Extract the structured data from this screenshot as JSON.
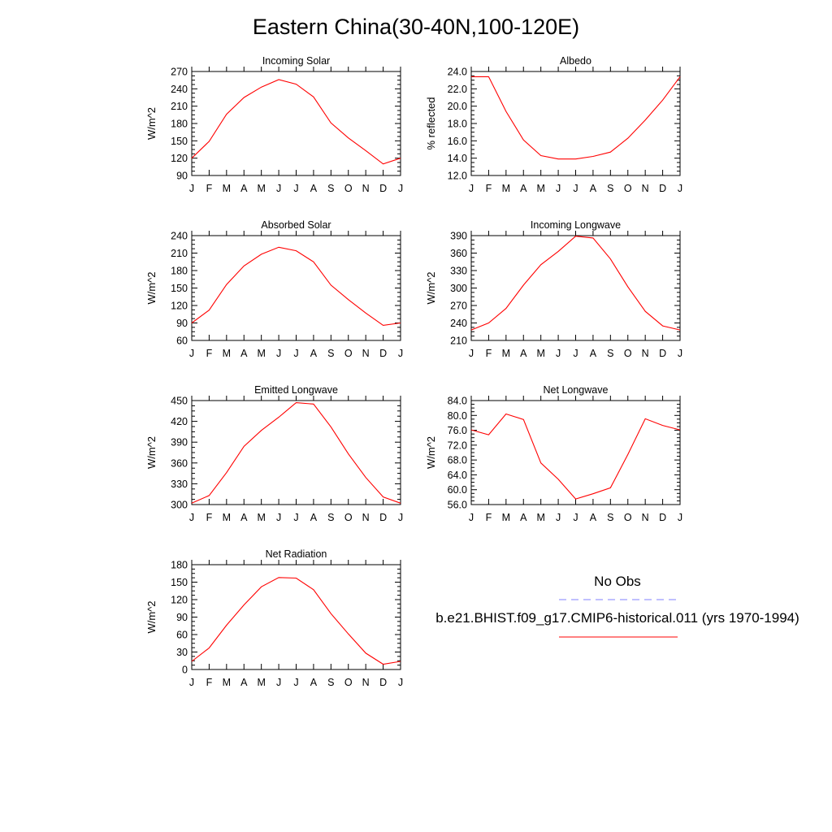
{
  "page": {
    "title": "Eastern China(30-40N,100-120E)"
  },
  "legend": {
    "items": [
      {
        "label": "No Obs",
        "color": "#8080ff",
        "dash": true
      },
      {
        "label": "b.e21.BHIST.f09_g17.CMIP6-historical.011 (yrs 1970-1994)",
        "color": "#ff0000",
        "dash": false
      }
    ]
  },
  "chart_data": [
    {
      "type": "line",
      "title": "Incoming Solar",
      "ylabel": "W/m^2",
      "xlabel": "",
      "categories": [
        "J",
        "F",
        "M",
        "A",
        "M",
        "J",
        "J",
        "A",
        "S",
        "O",
        "N",
        "D",
        "J"
      ],
      "ylim": [
        90,
        270
      ],
      "yticks": [
        "90",
        "120",
        "150",
        "180",
        "210",
        "240",
        "270"
      ],
      "series": [
        {
          "values": [
            120,
            149,
            196,
            225,
            243,
            256,
            248,
            226,
            181,
            155,
            133,
            110,
            120
          ],
          "color": "#ff0000"
        }
      ]
    },
    {
      "type": "line",
      "title": "Albedo",
      "ylabel": "% reflected",
      "xlabel": "",
      "categories": [
        "J",
        "F",
        "M",
        "A",
        "M",
        "J",
        "J",
        "A",
        "S",
        "O",
        "N",
        "D",
        "J"
      ],
      "ylim": [
        12,
        24
      ],
      "yticks": [
        "12.0",
        "14.0",
        "16.0",
        "18.0",
        "20.0",
        "22.0",
        "24.0"
      ],
      "series": [
        {
          "values": [
            23.4,
            23.4,
            19.4,
            16.1,
            14.3,
            13.9,
            13.9,
            14.2,
            14.7,
            16.3,
            18.4,
            20.7,
            23.4
          ],
          "color": "#ff0000"
        }
      ]
    },
    {
      "type": "line",
      "title": "Absorbed Solar",
      "ylabel": "W/m^2",
      "xlabel": "",
      "categories": [
        "J",
        "F",
        "M",
        "A",
        "M",
        "J",
        "J",
        "A",
        "S",
        "O",
        "N",
        "D",
        "J"
      ],
      "ylim": [
        60,
        240
      ],
      "yticks": [
        "60",
        "90",
        "120",
        "150",
        "180",
        "210",
        "240"
      ],
      "series": [
        {
          "values": [
            90,
            112,
            156,
            188,
            208,
            220,
            214,
            195,
            155,
            130,
            107,
            86,
            90
          ],
          "color": "#ff0000"
        }
      ]
    },
    {
      "type": "line",
      "title": "Incoming Longwave",
      "ylabel": "W/m^2",
      "xlabel": "",
      "categories": [
        "J",
        "F",
        "M",
        "A",
        "M",
        "J",
        "J",
        "A",
        "S",
        "O",
        "N",
        "D",
        "J"
      ],
      "ylim": [
        210,
        390
      ],
      "yticks": [
        "210",
        "240",
        "270",
        "300",
        "330",
        "360",
        "390"
      ],
      "series": [
        {
          "values": [
            228,
            240,
            265,
            305,
            340,
            363,
            389,
            386,
            350,
            302,
            260,
            235,
            228
          ],
          "color": "#ff0000"
        }
      ]
    },
    {
      "type": "line",
      "title": "Emitted Longwave",
      "ylabel": "W/m^2",
      "xlabel": "",
      "categories": [
        "J",
        "F",
        "M",
        "A",
        "M",
        "J",
        "J",
        "A",
        "S",
        "O",
        "N",
        "D",
        "J"
      ],
      "ylim": [
        300,
        450
      ],
      "yticks": [
        "300",
        "330",
        "360",
        "390",
        "420",
        "450"
      ],
      "series": [
        {
          "values": [
            302,
            313,
            346,
            384,
            407,
            426,
            447,
            445,
            412,
            373,
            339,
            311,
            302
          ],
          "color": "#ff0000"
        }
      ]
    },
    {
      "type": "line",
      "title": "Net Longwave",
      "ylabel": "W/m^2",
      "xlabel": "",
      "categories": [
        "J",
        "F",
        "M",
        "A",
        "M",
        "J",
        "J",
        "A",
        "S",
        "O",
        "N",
        "D",
        "J"
      ],
      "ylim": [
        56,
        84
      ],
      "yticks": [
        "56.0",
        "60.0",
        "64.0",
        "68.0",
        "72.0",
        "76.0",
        "80.0",
        "84.0"
      ],
      "series": [
        {
          "values": [
            76.1,
            74.8,
            80.4,
            78.9,
            67.2,
            62.8,
            57.5,
            58.9,
            60.5,
            69.5,
            79.1,
            77.3,
            76.1
          ],
          "color": "#ff0000"
        }
      ]
    },
    {
      "type": "line",
      "title": "Net Radiation",
      "ylabel": "W/m^2",
      "xlabel": "",
      "categories": [
        "J",
        "F",
        "M",
        "A",
        "M",
        "J",
        "J",
        "A",
        "S",
        "O",
        "N",
        "D",
        "J"
      ],
      "ylim": [
        0,
        180
      ],
      "yticks": [
        "0",
        "30",
        "60",
        "90",
        "120",
        "150",
        "180"
      ],
      "series": [
        {
          "values": [
            14,
            37,
            76,
            111,
            142,
            158,
            157,
            137,
            96,
            61,
            28,
            9,
            14
          ],
          "color": "#ff0000"
        }
      ]
    }
  ]
}
